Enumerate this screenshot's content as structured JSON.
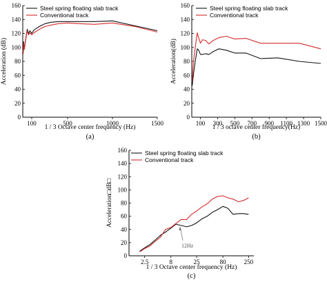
{
  "legend": {
    "steel": "Steel spring floating slab track",
    "conventional": "Conventional track"
  },
  "colors": {
    "steel": "#111111",
    "conventional": "#d42a2a"
  },
  "chart_data": [
    {
      "id": "a",
      "type": "line",
      "panel_label": "(a)",
      "xlabel": "1 / 3 Octave center frequency (Hz)",
      "ylabel": "Acceleration (dB)",
      "xlim": [
        0,
        1500
      ],
      "ylim": [
        0,
        160
      ],
      "xticks": [
        100,
        500,
        1000,
        1500
      ],
      "yticks": [
        0,
        20,
        40,
        60,
        80,
        100,
        120,
        140,
        160
      ],
      "legend_position": "top-left",
      "series": [
        {
          "name": "Steel spring floating slab track",
          "x": [
            5,
            10,
            16,
            25,
            40,
            50,
            63,
            80,
            100,
            125,
            160,
            200,
            250,
            315,
            400,
            500,
            630,
            800,
            1000,
            1250,
            1500
          ],
          "y": [
            92,
            108,
            98,
            105,
            118,
            126,
            120,
            124,
            120,
            125,
            128,
            131,
            134,
            136,
            137,
            137,
            137,
            137,
            138,
            131,
            124
          ]
        },
        {
          "name": "Conventional track",
          "x": [
            5,
            10,
            16,
            25,
            40,
            50,
            63,
            80,
            100,
            125,
            160,
            200,
            250,
            315,
            400,
            500,
            630,
            800,
            1000,
            1250,
            1500
          ],
          "y": [
            90,
            106,
            97,
            104,
            117,
            124,
            118,
            121,
            118,
            121,
            124,
            127,
            130,
            132,
            134,
            135,
            134,
            133,
            135,
            130,
            122
          ]
        }
      ]
    },
    {
      "id": "b",
      "type": "line",
      "panel_label": "(b)",
      "xlabel": "1 / 3 octave center frequency(Hz)",
      "ylabel": "Acceleration(dB)",
      "xlim": [
        0,
        1500
      ],
      "ylim": [
        0,
        160
      ],
      "xticks": [
        100,
        300,
        500,
        700,
        900,
        1100,
        1300,
        1500
      ],
      "yticks": [
        0,
        20,
        40,
        60,
        80,
        100,
        120,
        140,
        160
      ],
      "legend_position": "top-left",
      "series": [
        {
          "name": "Steel spring floating slab track",
          "x": [
            5,
            20,
            40,
            63,
            80,
            100,
            125,
            160,
            200,
            250,
            315,
            400,
            500,
            630,
            800,
            1000,
            1250,
            1500
          ],
          "y": [
            45,
            62,
            80,
            98,
            96,
            90,
            90,
            91,
            90,
            94,
            98,
            96,
            92,
            92,
            84,
            85,
            80,
            77
          ]
        },
        {
          "name": "Conventional track",
          "x": [
            5,
            20,
            40,
            63,
            80,
            100,
            125,
            160,
            200,
            250,
            315,
            400,
            500,
            630,
            800,
            1000,
            1250,
            1500
          ],
          "y": [
            52,
            80,
            100,
            121,
            114,
            106,
            111,
            110,
            105,
            110,
            114,
            116,
            112,
            113,
            106,
            106,
            106,
            98
          ]
        }
      ]
    },
    {
      "id": "c",
      "type": "line",
      "panel_label": "(c)",
      "xlabel": "1 / 3 Octave center frequency (Hz)",
      "ylabel": "Acceleration□dB□",
      "xscale": "log",
      "xlim": [
        1.25,
        315
      ],
      "ylim": [
        0,
        160
      ],
      "xtick_labels": [
        "2.5",
        "8",
        "25",
        "80",
        "250"
      ],
      "xticks": [
        2.5,
        8,
        25,
        80,
        250
      ],
      "yticks": [
        0,
        20,
        40,
        60,
        80,
        100,
        120,
        140,
        160
      ],
      "legend_position": "top-left",
      "annotation": {
        "text": "12Hz",
        "x": 12,
        "y": 44
      },
      "series": [
        {
          "name": "Steel spring floating slab track",
          "x": [
            2,
            2.5,
            3.15,
            4,
            5,
            6.3,
            8,
            10,
            12.5,
            16,
            20,
            25,
            31.5,
            40,
            50,
            63,
            80,
            100,
            125,
            160,
            200,
            250
          ],
          "y": [
            7,
            12,
            17,
            24,
            31,
            36,
            42,
            48,
            46,
            44,
            46,
            50,
            56,
            60,
            66,
            70,
            75,
            72,
            63,
            64,
            64,
            63
          ]
        },
        {
          "name": "Conventional track",
          "x": [
            2,
            2.5,
            3.15,
            4,
            5,
            6.3,
            8,
            10,
            12.5,
            16,
            20,
            25,
            31.5,
            40,
            50,
            63,
            80,
            100,
            125,
            160,
            200,
            250
          ],
          "y": [
            6,
            11,
            15,
            22,
            28,
            40,
            43,
            49,
            55,
            55,
            63,
            68,
            74,
            79,
            86,
            90,
            91,
            88,
            86,
            82,
            84,
            88
          ]
        }
      ]
    }
  ]
}
